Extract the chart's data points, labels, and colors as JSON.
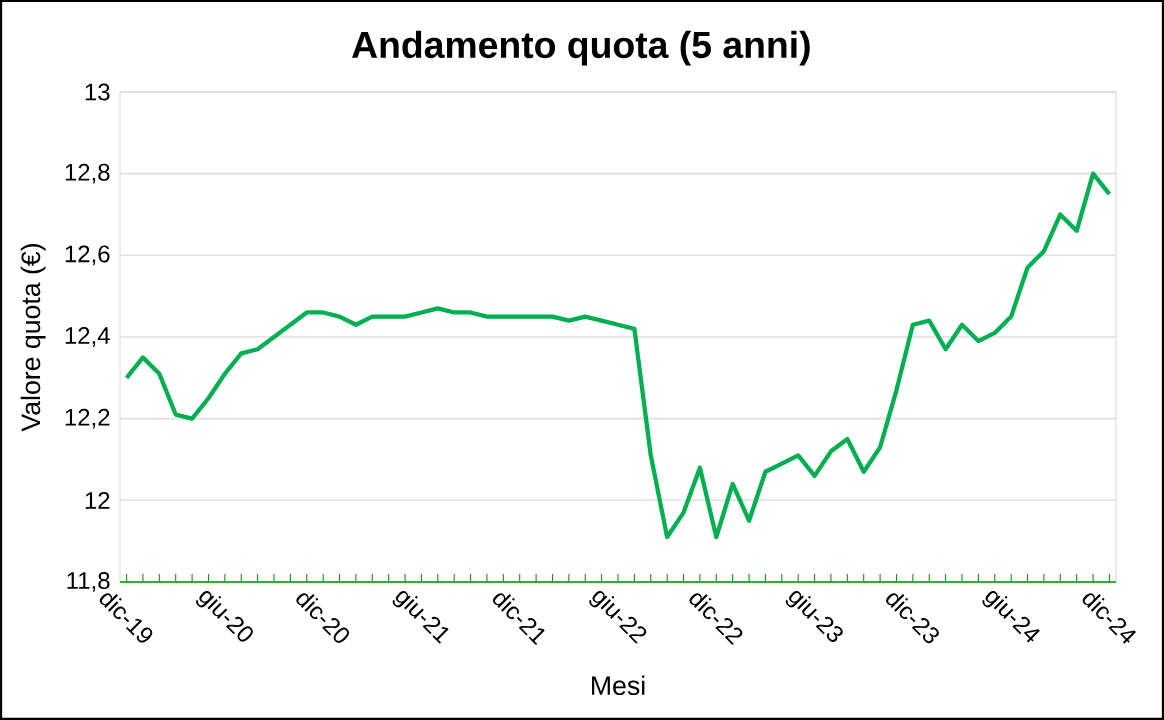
{
  "chart_data": {
    "type": "line",
    "title": "Andamento quota (5 anni)",
    "xlabel": "Mesi",
    "ylabel": "Valore quota (€)",
    "categories": [
      "dic-19",
      null,
      null,
      null,
      null,
      null,
      "giu-20",
      null,
      null,
      null,
      null,
      null,
      "dic-20",
      null,
      null,
      null,
      null,
      null,
      "giu-21",
      null,
      null,
      null,
      null,
      null,
      "dic-21",
      null,
      null,
      null,
      null,
      null,
      "giu-22",
      null,
      null,
      null,
      null,
      null,
      "dic-22",
      null,
      null,
      null,
      null,
      null,
      "giu-23",
      null,
      null,
      null,
      null,
      null,
      "dic-23",
      null,
      null,
      null,
      null,
      null,
      "giu-24",
      null,
      null,
      null,
      null,
      null,
      "dic-24"
    ],
    "series": [
      {
        "color": "#00b050",
        "values": [
          12.3,
          12.35,
          12.31,
          12.21,
          12.2,
          12.25,
          12.31,
          12.36,
          12.37,
          12.4,
          12.43,
          12.46,
          12.46,
          12.45,
          12.43,
          12.45,
          12.45,
          12.45,
          12.46,
          12.47,
          12.46,
          12.46,
          12.45,
          12.45,
          12.45,
          12.45,
          12.45,
          12.44,
          12.45,
          12.44,
          12.43,
          12.42,
          12.11,
          11.91,
          11.97,
          12.08,
          11.91,
          12.04,
          11.95,
          12.07,
          12.09,
          12.11,
          12.06,
          12.12,
          12.15,
          12.07,
          12.13,
          12.27,
          12.43,
          12.44,
          12.37,
          12.43,
          12.39,
          12.41,
          12.45,
          12.57,
          12.61,
          12.7,
          12.66,
          12.8,
          12.75
        ]
      }
    ],
    "ylim": [
      11.8,
      13
    ],
    "yticks": [
      {
        "value": 11.8,
        "label": "11,8"
      },
      12,
      {
        "value": 12.2,
        "label": "12,2"
      },
      {
        "value": 12.4,
        "label": "12,4"
      },
      {
        "value": 12.6,
        "label": "12,6"
      },
      {
        "value": 12.8,
        "label": "12,8"
      },
      13
    ],
    "grid": "y"
  }
}
